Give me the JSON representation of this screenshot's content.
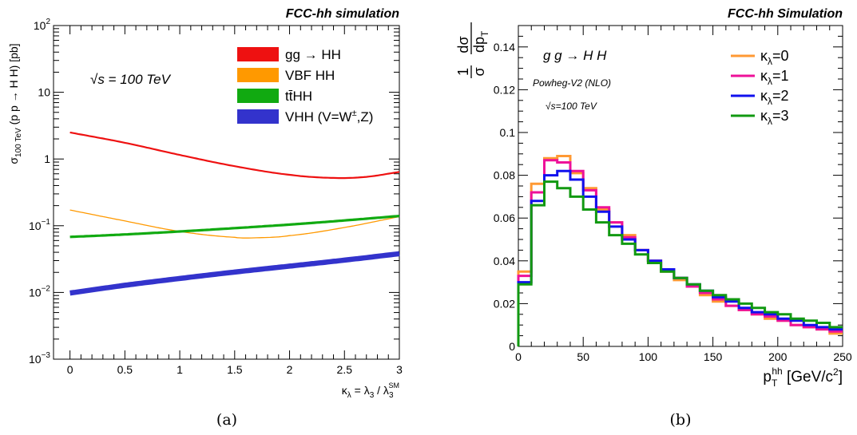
{
  "chart_data": [
    {
      "type": "line",
      "panel_caption": "(a)",
      "title": "FCC-hh simulation",
      "annotation": "√s = 100 TeV",
      "ylabel": "σ100 TeV (p p → H H) [pb]",
      "xlabel": "κλ = λ3 / λ3SM",
      "xlim": [
        -0.15,
        3.0
      ],
      "ylim": [
        0.001,
        100
      ],
      "yscale": "log",
      "x_ticks": [
        "0",
        "0.5",
        "1",
        "1.5",
        "2",
        "2.5",
        "3"
      ],
      "y_ticks": [
        {
          "base": "10",
          "exp": "−3"
        },
        {
          "base": "10",
          "exp": "−2"
        },
        {
          "base": "10",
          "exp": "−1"
        },
        {
          "base": "1",
          "exp": ""
        },
        {
          "base": "10",
          "exp": ""
        },
        {
          "base": "10",
          "exp": "2"
        }
      ],
      "legend_position": "top-right",
      "series": [
        {
          "name": "gg → HH",
          "color": "#ee1111",
          "x": [
            0,
            0.5,
            1,
            1.5,
            2,
            2.4,
            2.7,
            3
          ],
          "y": [
            2.5,
            1.75,
            1.15,
            0.78,
            0.58,
            0.52,
            0.54,
            0.64
          ]
        },
        {
          "name": "VBF HH",
          "color": "#ff9900",
          "x": [
            0,
            0.5,
            1,
            1.5,
            1.7,
            2,
            2.5,
            3
          ],
          "y": [
            0.172,
            0.118,
            0.082,
            0.067,
            0.066,
            0.071,
            0.094,
            0.137
          ]
        },
        {
          "name": "tt̄HH",
          "color": "#11aa11",
          "x": [
            0,
            0.5,
            1,
            1.5,
            2,
            2.5,
            3
          ],
          "y": [
            0.068,
            0.074,
            0.082,
            0.092,
            0.104,
            0.12,
            0.14
          ]
        },
        {
          "name": "VHH (V=W±,Z)",
          "color": "#3333cc",
          "x": [
            0,
            0.5,
            1,
            1.5,
            2,
            2.5,
            3
          ],
          "y": [
            0.0098,
            0.0128,
            0.0162,
            0.0202,
            0.0248,
            0.0305,
            0.038
          ]
        }
      ]
    },
    {
      "type": "step",
      "panel_caption": "(b)",
      "title": "FCC-hh Simulation",
      "annotations": [
        "g g → H H",
        "Powheg-V2 (NLO)",
        "√s=100 TeV"
      ],
      "ylabel": "1/σ dσ/dpT",
      "xlabel": "pThh [GeV/c2]",
      "xlim": [
        0,
        250
      ],
      "ylim": [
        0,
        0.15
      ],
      "x_ticks": [
        "0",
        "50",
        "100",
        "150",
        "200",
        "250"
      ],
      "y_ticks": [
        "0",
        "0.02",
        "0.04",
        "0.06",
        "0.08",
        "0.1",
        "0.12",
        "0.14"
      ],
      "legend_position": "top-right",
      "bin_edges": [
        0,
        10,
        20,
        30,
        40,
        50,
        60,
        70,
        80,
        90,
        100,
        110,
        120,
        130,
        140,
        150,
        160,
        170,
        180,
        190,
        200,
        210,
        220,
        230,
        240,
        250
      ],
      "series": [
        {
          "name": "κλ=0",
          "color": "#ff9933",
          "values": [
            0.035,
            0.076,
            0.088,
            0.089,
            0.081,
            0.074,
            0.064,
            0.058,
            0.052,
            0.045,
            0.04,
            0.035,
            0.031,
            0.028,
            0.024,
            0.021,
            0.019,
            0.017,
            0.015,
            0.013,
            0.012,
            0.01,
            0.009,
            0.008,
            0.006
          ]
        },
        {
          "name": "κλ=1",
          "color": "#ee1199",
          "values": [
            0.033,
            0.072,
            0.087,
            0.086,
            0.082,
            0.073,
            0.065,
            0.058,
            0.051,
            0.045,
            0.04,
            0.036,
            0.032,
            0.028,
            0.025,
            0.022,
            0.019,
            0.017,
            0.015,
            0.014,
            0.012,
            0.01,
            0.009,
            0.008,
            0.007
          ]
        },
        {
          "name": "κλ=2",
          "color": "#1111ee",
          "values": [
            0.03,
            0.068,
            0.08,
            0.082,
            0.078,
            0.07,
            0.063,
            0.056,
            0.05,
            0.045,
            0.04,
            0.036,
            0.032,
            0.029,
            0.026,
            0.023,
            0.021,
            0.018,
            0.016,
            0.015,
            0.013,
            0.012,
            0.01,
            0.009,
            0.008
          ]
        },
        {
          "name": "κλ=3",
          "color": "#119911",
          "values": [
            0.029,
            0.066,
            0.077,
            0.074,
            0.07,
            0.064,
            0.058,
            0.052,
            0.048,
            0.043,
            0.039,
            0.035,
            0.032,
            0.029,
            0.026,
            0.024,
            0.022,
            0.02,
            0.018,
            0.016,
            0.015,
            0.013,
            0.012,
            0.011,
            0.009
          ]
        }
      ]
    }
  ]
}
